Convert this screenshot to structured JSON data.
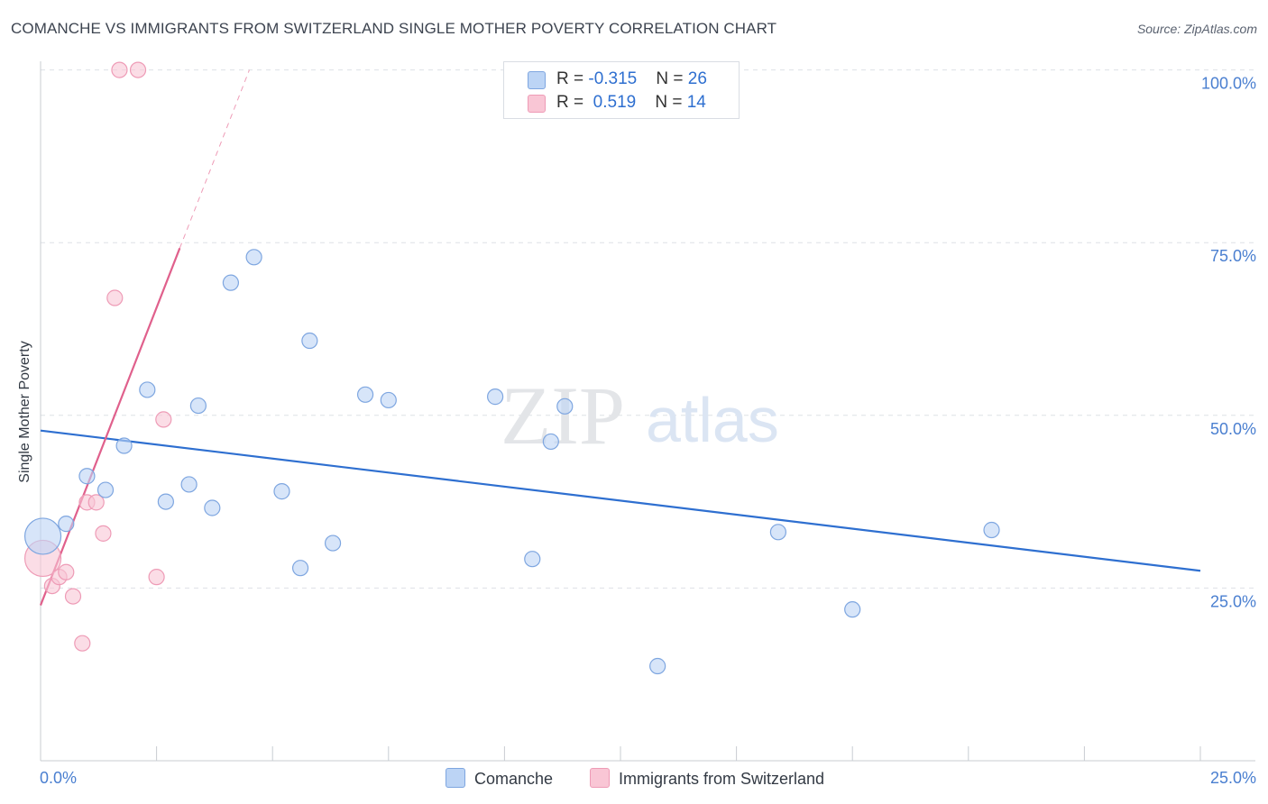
{
  "title": "COMANCHE VS IMMIGRANTS FROM SWITZERLAND SINGLE MOTHER POVERTY CORRELATION CHART",
  "source": "Source: ZipAtlas.com",
  "watermark": {
    "part1": "ZIP",
    "part2": "atlas"
  },
  "legend": {
    "rows": [
      {
        "r_label": "R = ",
        "r_value": "-0.315",
        "n_label": "N = ",
        "n_value": "26",
        "fill": "#bcd4f5",
        "stroke": "#7ea6e0"
      },
      {
        "r_label": "R = ",
        "r_value": "0.519",
        "n_label": "N = ",
        "n_value": "14",
        "fill": "#f9c6d5",
        "stroke": "#ee9bb6"
      }
    ]
  },
  "chart_data": {
    "type": "scatter",
    "xlabel": "",
    "ylabel": "Single Mother Poverty",
    "xlim": [
      0,
      25
    ],
    "ylim": [
      0,
      102
    ],
    "x_tick_labels": [
      "0.0%",
      "25.0%"
    ],
    "y_ticks": [
      {
        "value": 25,
        "label": "25.0%"
      },
      {
        "value": 50,
        "label": "50.0%"
      },
      {
        "value": 75,
        "label": "75.0%"
      },
      {
        "value": 100,
        "label": "100.0%"
      }
    ],
    "grid": true,
    "legend_position": "bottom-center",
    "series": [
      {
        "name": "Comanche",
        "color": "#2e6fd0",
        "fill": "#bcd4f5",
        "stroke": "#7ea6e0",
        "points": [
          {
            "x": 0.05,
            "y": 32.5,
            "size": "large"
          },
          {
            "x": 0.55,
            "y": 34.3
          },
          {
            "x": 1.0,
            "y": 41.2
          },
          {
            "x": 1.4,
            "y": 39.2
          },
          {
            "x": 1.8,
            "y": 45.6
          },
          {
            "x": 2.3,
            "y": 53.7
          },
          {
            "x": 2.7,
            "y": 37.5
          },
          {
            "x": 3.2,
            "y": 40.0
          },
          {
            "x": 3.4,
            "y": 51.4
          },
          {
            "x": 3.7,
            "y": 36.6
          },
          {
            "x": 4.1,
            "y": 69.2
          },
          {
            "x": 4.6,
            "y": 72.9
          },
          {
            "x": 5.2,
            "y": 39.0
          },
          {
            "x": 5.6,
            "y": 27.9
          },
          {
            "x": 5.8,
            "y": 60.8
          },
          {
            "x": 6.3,
            "y": 31.5
          },
          {
            "x": 7.0,
            "y": 53.0
          },
          {
            "x": 7.5,
            "y": 52.2
          },
          {
            "x": 9.8,
            "y": 52.7
          },
          {
            "x": 10.6,
            "y": 29.2
          },
          {
            "x": 11.0,
            "y": 46.2
          },
          {
            "x": 11.3,
            "y": 51.3
          },
          {
            "x": 13.3,
            "y": 13.7
          },
          {
            "x": 15.9,
            "y": 33.1
          },
          {
            "x": 17.5,
            "y": 21.9
          },
          {
            "x": 20.5,
            "y": 33.4
          }
        ],
        "trend": {
          "x0": 0,
          "y0": 47.8,
          "x1": 25,
          "y1": 27.5
        }
      },
      {
        "name": "Immigrants from Switzerland",
        "color": "#e0608c",
        "fill": "#f9c6d5",
        "stroke": "#ee9bb6",
        "points": [
          {
            "x": 0.05,
            "y": 29.3,
            "size": "large"
          },
          {
            "x": 0.25,
            "y": 25.3
          },
          {
            "x": 0.4,
            "y": 26.6
          },
          {
            "x": 0.55,
            "y": 27.3
          },
          {
            "x": 0.7,
            "y": 23.8
          },
          {
            "x": 0.9,
            "y": 17.0
          },
          {
            "x": 1.0,
            "y": 37.4
          },
          {
            "x": 1.2,
            "y": 37.4
          },
          {
            "x": 1.35,
            "y": 32.9
          },
          {
            "x": 1.6,
            "y": 67.0
          },
          {
            "x": 1.7,
            "y": 100.0
          },
          {
            "x": 2.1,
            "y": 100.0
          },
          {
            "x": 2.5,
            "y": 26.6
          },
          {
            "x": 2.65,
            "y": 49.4
          }
        ],
        "trend": {
          "x0": 0,
          "y0": 22.5,
          "x1": 3.0,
          "y1": 74.2,
          "dash_to_x": 4.5,
          "dash_to_y": 100.0
        }
      }
    ]
  }
}
